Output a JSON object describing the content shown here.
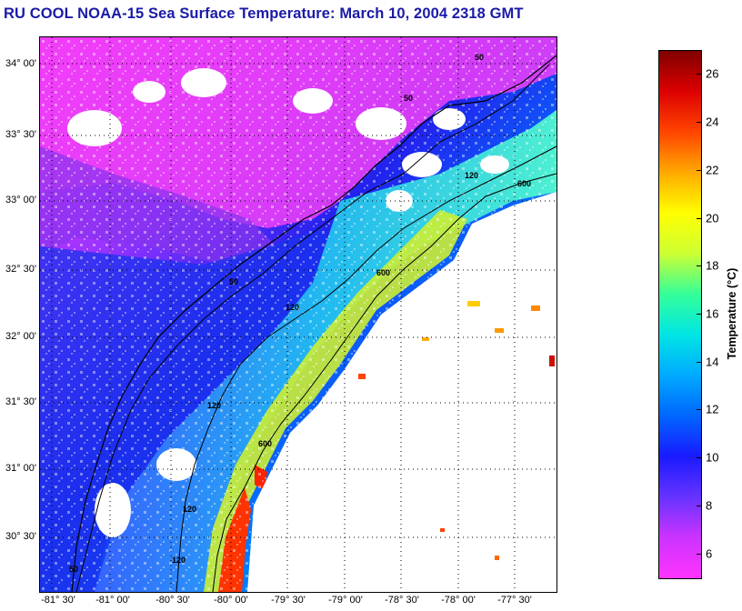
{
  "title": "RU COOL  NOAA-15  Sea Surface Temperature:  March 10, 2004 2318 GMT",
  "lat_labels": [
    "34° 00'",
    "33° 30'",
    "33° 00'",
    "32° 30'",
    "32° 00'",
    "31° 30'",
    "31° 00'",
    "30° 30'"
  ],
  "lon_labels": [
    "-81° 30'",
    "-81° 00'",
    "-80° 30'",
    "-80° 00'",
    "-79° 30'",
    "-79° 00'",
    "-78° 30'",
    "-78° 00'",
    "-77° 30'"
  ],
  "colorbar": {
    "title": "Temperature (°C)",
    "min": 5,
    "max": 27,
    "tick_labels": [
      "26",
      "24",
      "22",
      "20",
      "18",
      "16",
      "14",
      "12",
      "10",
      "8",
      "6"
    ],
    "colors": [
      "#ff33ff",
      "#cc33ff",
      "#6633ff",
      "#1a1aff",
      "#0066ff",
      "#00aaff",
      "#00e5e5",
      "#33ff99",
      "#ccff33",
      "#ffff00",
      "#ffaa00",
      "#ff4400",
      "#dd0000",
      "#800000"
    ]
  },
  "isobath_labels": [
    "50",
    "50",
    "50",
    "50",
    "120",
    "120",
    "120",
    "120",
    "120",
    "600",
    "600",
    "600"
  ]
}
